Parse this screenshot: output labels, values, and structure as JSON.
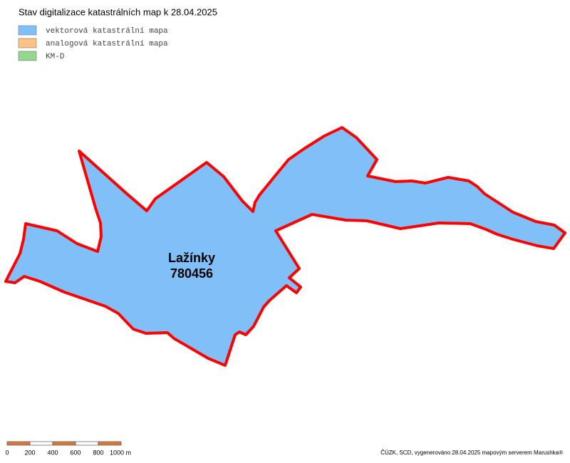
{
  "title": "Stav digitalizace katastrálních map k 28.04.2025",
  "legend": [
    {
      "label": "vektorová katastrální mapa",
      "color": "#80bff8"
    },
    {
      "label": "analogová katastrální mapa",
      "color": "#ffc184"
    },
    {
      "label": "KM-D",
      "color": "#94d68c"
    }
  ],
  "area": {
    "name": "Lažínky",
    "code": "780456"
  },
  "scale_bar": {
    "labels": [
      "0",
      "200",
      "400",
      "600",
      "800",
      "1000 m"
    ]
  },
  "footer": "ČÚZK, SCD, vygenerováno 28.04.2025 mapovým serverem Marushka®"
}
